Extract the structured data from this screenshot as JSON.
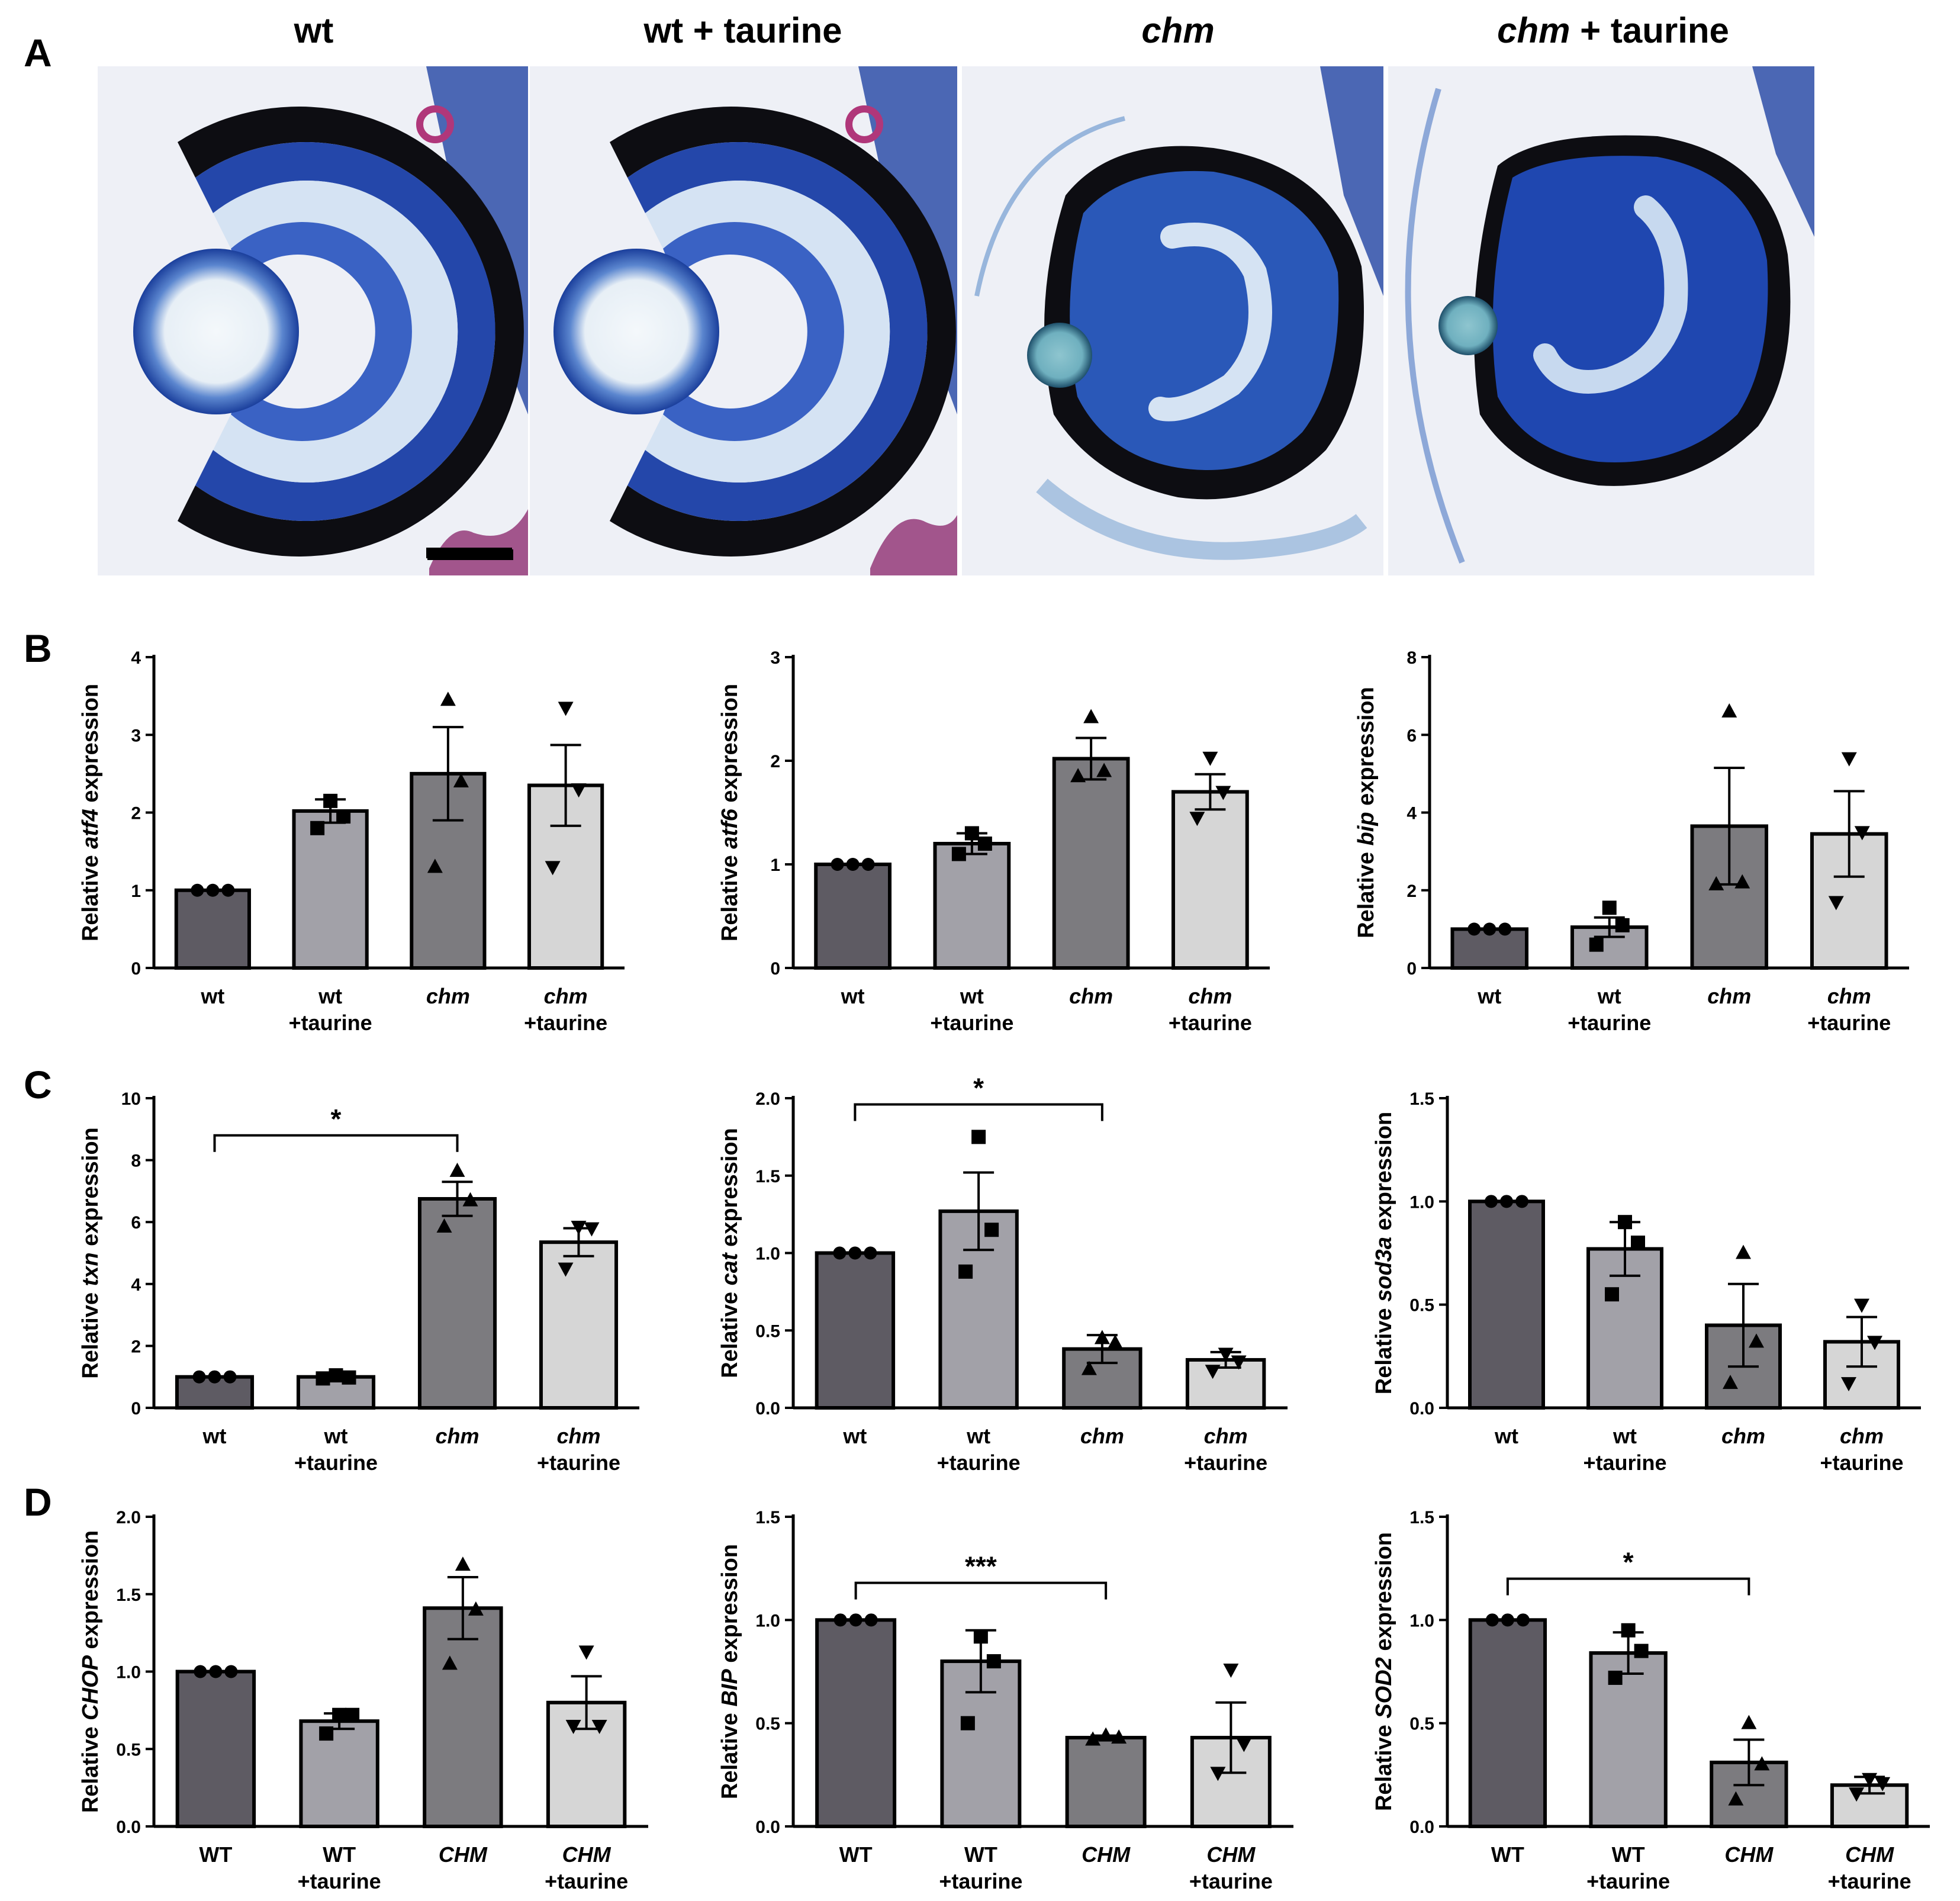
{
  "panel_letters": [
    "A",
    "B",
    "C",
    "D"
  ],
  "histology": {
    "titles": [
      {
        "main": "wt",
        "suffix": ""
      },
      {
        "main": "wt + taurine",
        "suffix": ""
      },
      {
        "main": "chm",
        "suffix": ""
      },
      {
        "main": "chm",
        "suffix": " + taurine"
      }
    ],
    "italic_main": [
      false,
      false,
      true,
      true
    ],
    "stain_colors": {
      "pigment": "#0d0d12",
      "retina": "#3a62c4",
      "deep": "#1f47b0",
      "lens_center": "#f4f8fb",
      "tissue": "#b7c7e6",
      "pink": "#b0377a"
    }
  },
  "bar_colors": [
    "#5e5b63",
    "#a2a1a8",
    "#7c7b7f",
    "#d6d6d6"
  ],
  "chart_data": [
    {
      "panel": "B",
      "type": "bar",
      "ylabel_prefix": "Relative ",
      "ylabel_gene": "atf4",
      "ylabel_suffix": " expression",
      "categories": [
        {
          "line1": "wt",
          "line2": "",
          "italic": false
        },
        {
          "line1": "wt",
          "line2": "+taurine",
          "italic": false
        },
        {
          "line1": "chm",
          "line2": "",
          "italic": true
        },
        {
          "line1": "chm",
          "line2": "+taurine",
          "italic": true
        }
      ],
      "ylim": [
        0,
        4
      ],
      "ticks": [
        "0",
        "1",
        "2",
        "3",
        "4"
      ],
      "tick_values": [
        0,
        1,
        2,
        3,
        4
      ],
      "values": [
        1.0,
        2.02,
        2.5,
        2.35
      ],
      "errors": [
        0,
        0.15,
        0.6,
        0.52
      ],
      "points": [
        [
          1.0,
          1.0,
          1.0
        ],
        [
          2.15,
          1.95,
          1.8
        ],
        [
          3.45,
          2.4,
          1.3
        ],
        [
          3.35,
          2.3,
          1.3
        ]
      ],
      "markers": [
        "circle",
        "square",
        "triangle-up",
        "triangle-down"
      ],
      "significance": null
    },
    {
      "panel": "B",
      "type": "bar",
      "ylabel_prefix": "Relative ",
      "ylabel_gene": "atf6",
      "ylabel_suffix": " expression",
      "categories": [
        {
          "line1": "wt",
          "line2": "",
          "italic": false
        },
        {
          "line1": "wt",
          "line2": "+taurine",
          "italic": false
        },
        {
          "line1": "chm",
          "line2": "",
          "italic": true
        },
        {
          "line1": "chm",
          "line2": "+taurine",
          "italic": true
        }
      ],
      "ylim": [
        0,
        3
      ],
      "ticks": [
        "0",
        "1",
        "2",
        "3"
      ],
      "tick_values": [
        0,
        1,
        2,
        3
      ],
      "values": [
        1.0,
        1.2,
        2.02,
        1.7
      ],
      "errors": [
        0,
        0.1,
        0.2,
        0.17
      ],
      "points": [
        [
          1.0,
          1.0,
          1.0
        ],
        [
          1.3,
          1.2,
          1.1
        ],
        [
          2.42,
          1.9,
          1.85
        ],
        [
          2.03,
          1.7,
          1.45
        ]
      ],
      "markers": [
        "circle",
        "square",
        "triangle-up",
        "triangle-down"
      ],
      "significance": null
    },
    {
      "panel": "B",
      "type": "bar",
      "ylabel_prefix": "Relative ",
      "ylabel_gene": "bip",
      "ylabel_suffix": " expression",
      "categories": [
        {
          "line1": "wt",
          "line2": "",
          "italic": false
        },
        {
          "line1": "wt",
          "line2": "+taurine",
          "italic": false
        },
        {
          "line1": "chm",
          "line2": "",
          "italic": true
        },
        {
          "line1": "chm",
          "line2": "+taurine",
          "italic": true
        }
      ],
      "ylim": [
        0,
        8
      ],
      "ticks": [
        "0",
        "2",
        "4",
        "6",
        "8"
      ],
      "tick_values": [
        0,
        2,
        4,
        6,
        8
      ],
      "values": [
        1.0,
        1.05,
        3.65,
        3.45
      ],
      "errors": [
        0,
        0.25,
        1.5,
        1.1
      ],
      "points": [
        [
          1.0,
          1.0,
          1.0
        ],
        [
          1.55,
          1.1,
          0.6
        ],
        [
          6.6,
          2.2,
          2.15
        ],
        [
          5.4,
          3.5,
          1.7
        ]
      ],
      "markers": [
        "circle",
        "square",
        "triangle-up",
        "triangle-down"
      ],
      "significance": null
    },
    {
      "panel": "C",
      "type": "bar",
      "ylabel_prefix": "Relative ",
      "ylabel_gene": "txn",
      "ylabel_suffix": " expression",
      "categories": [
        {
          "line1": "wt",
          "line2": "",
          "italic": false
        },
        {
          "line1": "wt",
          "line2": "+taurine",
          "italic": false
        },
        {
          "line1": "chm",
          "line2": "",
          "italic": true
        },
        {
          "line1": "chm",
          "line2": "+taurine",
          "italic": true
        }
      ],
      "ylim": [
        0,
        10
      ],
      "ticks": [
        "0",
        "2",
        "4",
        "6",
        "8",
        "10"
      ],
      "tick_values": [
        0,
        2,
        4,
        6,
        8,
        10
      ],
      "values": [
        1.0,
        1.0,
        6.75,
        5.35
      ],
      "errors": [
        0,
        0.05,
        0.55,
        0.45
      ],
      "points": [
        [
          1.0,
          1.0,
          1.0
        ],
        [
          1.05,
          0.98,
          0.95
        ],
        [
          7.65,
          6.7,
          5.85
        ],
        [
          5.85,
          5.8,
          4.5
        ]
      ],
      "markers": [
        "circle",
        "square",
        "triangle-up",
        "triangle-down"
      ],
      "significance": {
        "from": 0,
        "to": 2,
        "label": "*",
        "y": 8.8
      }
    },
    {
      "panel": "C",
      "type": "bar",
      "ylabel_prefix": "Relative ",
      "ylabel_gene": "cat",
      "ylabel_suffix": " expression",
      "categories": [
        {
          "line1": "wt",
          "line2": "",
          "italic": false
        },
        {
          "line1": "wt",
          "line2": "+taurine",
          "italic": false
        },
        {
          "line1": "chm",
          "line2": "",
          "italic": true
        },
        {
          "line1": "chm",
          "line2": "+taurine",
          "italic": true
        }
      ],
      "ylim": [
        0,
        2.0
      ],
      "ticks": [
        "0.0",
        "0.5",
        "1.0",
        "1.5",
        "2.0"
      ],
      "tick_values": [
        0,
        0.5,
        1,
        1.5,
        2
      ],
      "values": [
        1.0,
        1.27,
        0.38,
        0.31
      ],
      "errors": [
        0,
        0.25,
        0.09,
        0.05
      ],
      "points": [
        [
          1.0,
          1.0,
          1.0
        ],
        [
          1.75,
          1.15,
          0.88
        ],
        [
          0.45,
          0.42,
          0.25
        ],
        [
          0.35,
          0.3,
          0.24
        ]
      ],
      "markers": [
        "circle",
        "square",
        "triangle-up",
        "triangle-down"
      ],
      "significance": {
        "from": 0,
        "to": 2,
        "label": "*",
        "y": 1.96
      }
    },
    {
      "panel": "C",
      "type": "bar",
      "ylabel_prefix": "Relative ",
      "ylabel_gene": "sod3a",
      "ylabel_suffix": " expression",
      "categories": [
        {
          "line1": "wt",
          "line2": "",
          "italic": false
        },
        {
          "line1": "wt",
          "line2": "+taurine",
          "italic": false
        },
        {
          "line1": "chm",
          "line2": "",
          "italic": true
        },
        {
          "line1": "chm",
          "line2": "+taurine",
          "italic": true
        }
      ],
      "ylim": [
        0,
        1.5
      ],
      "ticks": [
        "0.0",
        "0.5",
        "1.0",
        "1.5"
      ],
      "tick_values": [
        0,
        0.5,
        1,
        1.5
      ],
      "values": [
        1.0,
        0.77,
        0.4,
        0.32
      ],
      "errors": [
        0,
        0.13,
        0.2,
        0.12
      ],
      "points": [
        [
          1.0,
          1.0,
          1.0
        ],
        [
          0.9,
          0.8,
          0.55
        ],
        [
          0.75,
          0.32,
          0.12
        ],
        [
          0.5,
          0.32,
          0.12
        ]
      ],
      "markers": [
        "circle",
        "square",
        "triangle-up",
        "triangle-down"
      ],
      "significance": null
    },
    {
      "panel": "D",
      "type": "bar",
      "ylabel_prefix": "Relative ",
      "ylabel_gene": "CHOP",
      "ylabel_suffix": " expression",
      "categories": [
        {
          "line1": "WT",
          "line2": "",
          "italic": false
        },
        {
          "line1": "WT",
          "line2": "+taurine",
          "italic": false
        },
        {
          "line1": "CHM",
          "line2": "",
          "italic": true
        },
        {
          "line1": "CHM",
          "line2": "+taurine",
          "italic": true
        }
      ],
      "ylim": [
        0,
        2.0
      ],
      "ticks": [
        "0.0",
        "0.5",
        "1.0",
        "1.5",
        "2.0"
      ],
      "tick_values": [
        0,
        0.5,
        1,
        1.5,
        2
      ],
      "values": [
        1.0,
        0.68,
        1.41,
        0.8
      ],
      "errors": [
        0,
        0.05,
        0.2,
        0.17
      ],
      "points": [
        [
          1.0,
          1.0,
          1.0
        ],
        [
          0.72,
          0.72,
          0.6
        ],
        [
          1.69,
          1.4,
          1.05
        ],
        [
          1.13,
          0.65,
          0.65
        ]
      ],
      "markers": [
        "circle",
        "square",
        "triangle-up",
        "triangle-down"
      ],
      "significance": null
    },
    {
      "panel": "D",
      "type": "bar",
      "ylabel_prefix": "Relative ",
      "ylabel_gene": "BIP",
      "ylabel_suffix": " expression",
      "categories": [
        {
          "line1": "WT",
          "line2": "",
          "italic": false
        },
        {
          "line1": "WT",
          "line2": "+taurine",
          "italic": false
        },
        {
          "line1": "CHM",
          "line2": "",
          "italic": true
        },
        {
          "line1": "CHM",
          "line2": "+taurine",
          "italic": true
        }
      ],
      "ylim": [
        0,
        1.5
      ],
      "ticks": [
        "0.0",
        "0.5",
        "1.0",
        "1.5"
      ],
      "tick_values": [
        0,
        0.5,
        1,
        1.5
      ],
      "values": [
        1.0,
        0.8,
        0.43,
        0.43
      ],
      "errors": [
        0,
        0.15,
        0.01,
        0.17
      ],
      "points": [
        [
          1.0,
          1.0,
          1.0
        ],
        [
          0.92,
          0.8,
          0.5
        ],
        [
          0.44,
          0.43,
          0.42
        ],
        [
          0.76,
          0.4,
          0.26
        ]
      ],
      "markers": [
        "circle",
        "square",
        "triangle-up",
        "triangle-down"
      ],
      "significance": {
        "from": 0,
        "to": 2,
        "label": "***",
        "y": 1.18
      }
    },
    {
      "panel": "D",
      "type": "bar",
      "ylabel_prefix": "Relative ",
      "ylabel_gene": "SOD2",
      "ylabel_suffix": " expression",
      "categories": [
        {
          "line1": "WT",
          "line2": "",
          "italic": false
        },
        {
          "line1": "WT",
          "line2": "+taurine",
          "italic": false
        },
        {
          "line1": "CHM",
          "line2": "",
          "italic": true
        },
        {
          "line1": "CHM",
          "line2": "+taurine",
          "italic": true
        }
      ],
      "ylim": [
        0,
        1.5
      ],
      "ticks": [
        "0.0",
        "0.5",
        "1.0",
        "1.5"
      ],
      "tick_values": [
        0,
        0.5,
        1,
        1.5
      ],
      "values": [
        1.0,
        0.84,
        0.31,
        0.2
      ],
      "errors": [
        0,
        0.1,
        0.11,
        0.04
      ],
      "points": [
        [
          1.0,
          1.0,
          1.0
        ],
        [
          0.95,
          0.85,
          0.72
        ],
        [
          0.5,
          0.3,
          0.13
        ],
        [
          0.23,
          0.21,
          0.16
        ]
      ],
      "markers": [
        "circle",
        "square",
        "triangle-up",
        "triangle-down"
      ],
      "significance": {
        "from": 0,
        "to": 2,
        "label": "*",
        "y": 1.2
      }
    }
  ]
}
